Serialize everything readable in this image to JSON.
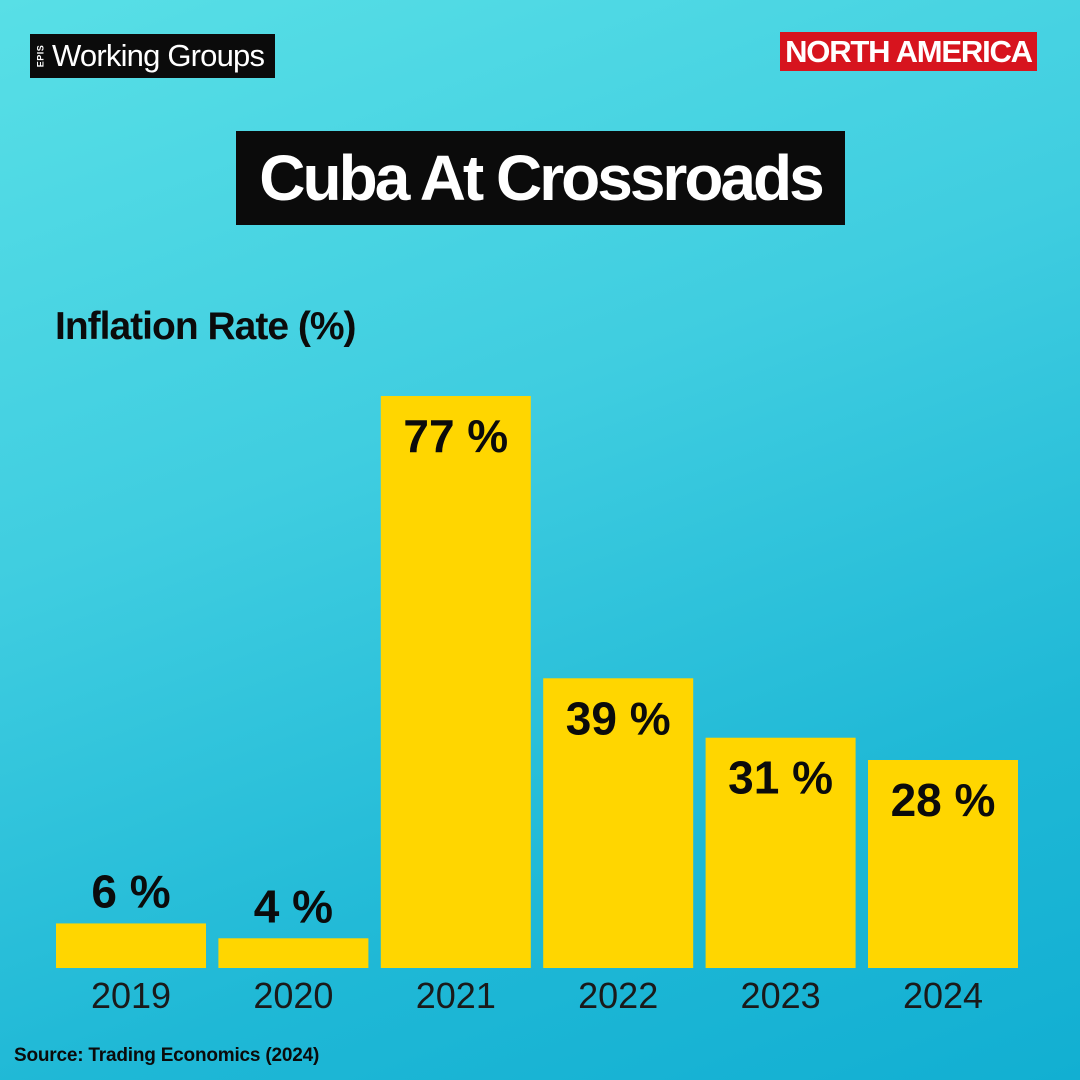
{
  "brand": {
    "prefix": "EPIS",
    "name": "Working Groups"
  },
  "region": "NORTH AMERICA",
  "colors": {
    "bar": "#ffd600",
    "text": "#0b0b0b",
    "region_bg": "#d7141e"
  },
  "chart_data": {
    "type": "bar",
    "title": "Cuba At Crossroads",
    "ylabel": "Inflation Rate (%)",
    "xlabel": "",
    "categories": [
      "2019",
      "2020",
      "2021",
      "2022",
      "2023",
      "2024"
    ],
    "values": [
      6,
      4,
      77,
      39,
      31,
      28
    ],
    "data_labels": [
      "6 %",
      "4 %",
      "77 %",
      "39 %",
      "31 %",
      "28 %"
    ],
    "ylim": [
      0,
      77
    ],
    "grid": false,
    "legend": "none"
  },
  "source": "Source: Trading Economics (2024)"
}
